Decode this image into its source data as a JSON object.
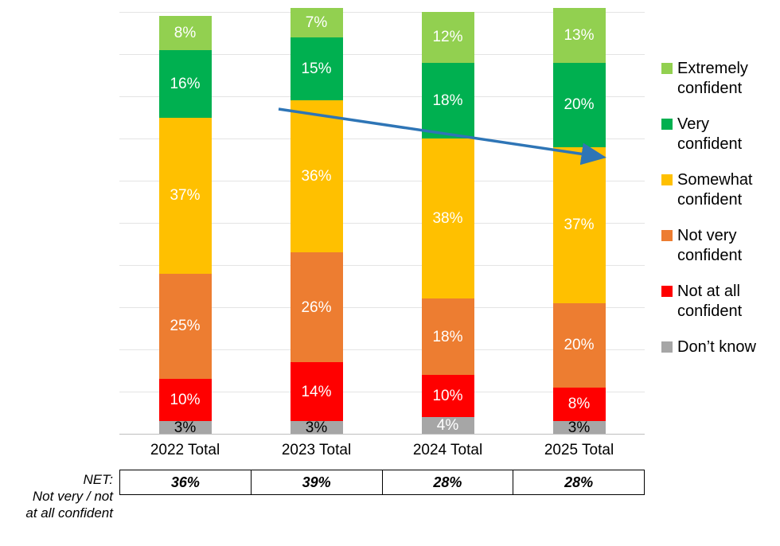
{
  "chart_data": {
    "type": "bar",
    "stacked": true,
    "title": "",
    "categories": [
      "2022 Total",
      "2023 Total",
      "2024 Total",
      "2025 Total"
    ],
    "series": [
      {
        "name": "Don’t know",
        "color": "#A6A6A6",
        "values": [
          3,
          3,
          4,
          3
        ],
        "label_colors": [
          "#000000",
          "#000000",
          "#FFFFFF",
          "#000000"
        ]
      },
      {
        "name": "Not at all confident",
        "color": "#FF0000",
        "values": [
          10,
          14,
          10,
          8
        ],
        "label_colors": [
          "#FFFFFF",
          "#FFFFFF",
          "#FFFFFF",
          "#FFFFFF"
        ]
      },
      {
        "name": "Not very confident",
        "color": "#ED7D31",
        "values": [
          25,
          26,
          18,
          20
        ],
        "label_colors": [
          "#FFFFFF",
          "#FFFFFF",
          "#FFFFFF",
          "#FFFFFF"
        ]
      },
      {
        "name": "Somewhat confident",
        "color": "#FFC000",
        "values": [
          37,
          36,
          38,
          37
        ],
        "label_colors": [
          "#FFFFFF",
          "#FFFFFF",
          "#FFFFFF",
          "#FFFFFF"
        ]
      },
      {
        "name": "Very confident",
        "color": "#00B050",
        "values": [
          16,
          15,
          18,
          20
        ],
        "label_colors": [
          "#FFFFFF",
          "#FFFFFF",
          "#FFFFFF",
          "#FFFFFF"
        ]
      },
      {
        "name": "Extremely confident",
        "color": "#92D050",
        "values": [
          8,
          7,
          12,
          13
        ],
        "label_colors": [
          "#FFFFFF",
          "#FFFFFF",
          "#FFFFFF",
          "#FFFFFF"
        ]
      }
    ],
    "value_suffix": "%",
    "ylim": [
      0,
      100
    ],
    "grid": true,
    "legend_position": "right",
    "trend_arrow": {
      "color": "#2E75B6",
      "description": "downward trend arrow from above 2023 bar to top of 2025 bar"
    }
  },
  "legend": {
    "items": [
      {
        "label": "Extremely confident",
        "color": "#92D050"
      },
      {
        "label": "Very confident",
        "color": "#00B050"
      },
      {
        "label": "Somewhat confident",
        "color": "#FFC000"
      },
      {
        "label": "Not very confident",
        "color": "#ED7D31"
      },
      {
        "label": "Not at all confident",
        "color": "#FF0000"
      },
      {
        "label": "Don’t know",
        "color": "#A6A6A6"
      }
    ]
  },
  "net_table": {
    "label_line1": "NET:",
    "label_line2": "Not very / not",
    "label_line3": "at all confident",
    "values": [
      "36%",
      "39%",
      "28%",
      "28%"
    ]
  }
}
